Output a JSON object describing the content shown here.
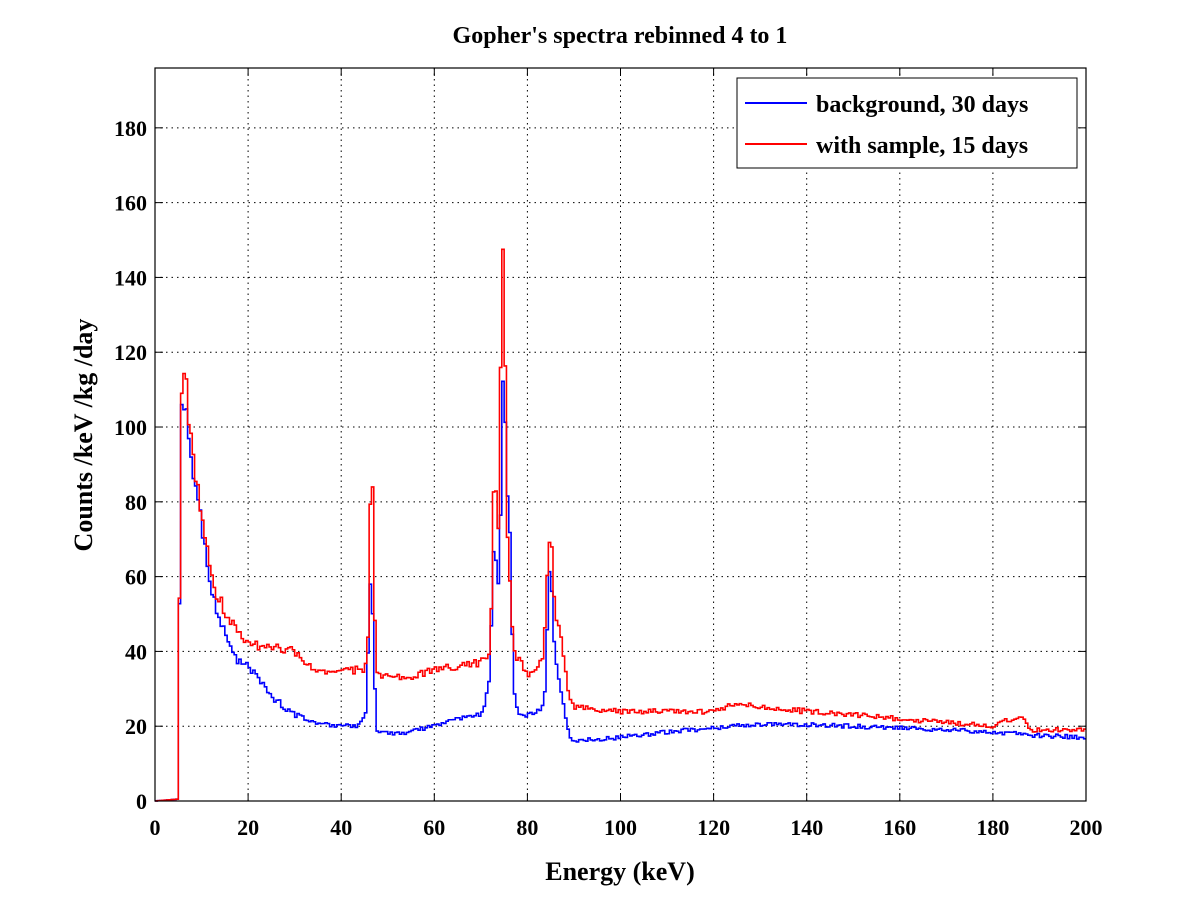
{
  "chart_data": {
    "type": "line",
    "title": "Gopher's spectra rebinned 4 to 1",
    "xlabel": "Energy (keV)",
    "ylabel": "Counts /keV /kg /day",
    "xlim": [
      0,
      200
    ],
    "ylim": [
      0,
      196
    ],
    "xticks": [
      0,
      20,
      40,
      60,
      80,
      100,
      120,
      140,
      160,
      180,
      200
    ],
    "yticks": [
      0,
      20,
      40,
      60,
      80,
      100,
      120,
      140,
      160,
      180
    ],
    "grid": true,
    "legend_position": "top-right",
    "series": [
      {
        "name": "background, 30 days",
        "color": "#0000ff",
        "x": [
          0,
          5,
          5.5,
          6,
          7,
          8,
          9,
          10,
          11,
          12,
          13,
          14,
          15,
          16,
          17,
          18,
          20,
          22,
          25,
          28,
          30,
          35,
          40,
          44,
          45.5,
          46,
          46.5,
          47,
          47.5,
          48,
          50,
          55,
          60,
          65,
          70,
          71,
          72,
          72.5,
          73,
          73.5,
          74,
          74.5,
          75,
          75.5,
          76,
          77,
          78,
          80,
          82,
          83.5,
          84,
          84.5,
          85,
          85.5,
          86,
          87,
          88,
          89,
          90,
          100,
          110,
          120,
          130,
          140,
          150,
          160,
          170,
          180,
          190,
          200
        ],
        "y": [
          0,
          0.5,
          105,
          107,
          102,
          90,
          82,
          75,
          65,
          57,
          52,
          48,
          45,
          42,
          40,
          37,
          36,
          33,
          28,
          25,
          23,
          21,
          20,
          20,
          24,
          54,
          60,
          40,
          19,
          19,
          18,
          18.5,
          20,
          22,
          23,
          26,
          35,
          57,
          75,
          55,
          60,
          95,
          125,
          80,
          86,
          30,
          24,
          23,
          24,
          25,
          34,
          60,
          64,
          45,
          38,
          30,
          24,
          18,
          16,
          17,
          18.5,
          19.5,
          20.5,
          20.5,
          20,
          19.5,
          19,
          18.5,
          17.5,
          17
        ]
      },
      {
        "name": "with sample, 15 days",
        "color": "#ff0000",
        "x": [
          0,
          5,
          5.5,
          6,
          6.5,
          7,
          8,
          9,
          10,
          11,
          12,
          13,
          14,
          15,
          16,
          18,
          20,
          25,
          30,
          35,
          40,
          44,
          45.5,
          46,
          46.5,
          47,
          47.5,
          48,
          50,
          55,
          60,
          65,
          70,
          71,
          72,
          72.5,
          73,
          73.5,
          74,
          74.5,
          75,
          75.5,
          76,
          77,
          78,
          80,
          82,
          83.5,
          84,
          84.5,
          85,
          85.5,
          86,
          87,
          88,
          89,
          90,
          100,
          110,
          120,
          125,
          130,
          140,
          150,
          160,
          170,
          180,
          186,
          188,
          190,
          200
        ],
        "y": [
          0,
          0.5,
          108,
          110,
          116,
          105,
          95,
          85,
          75,
          70,
          60,
          55,
          54,
          50,
          48,
          45,
          42,
          41,
          40,
          34,
          35,
          35,
          36,
          50,
          105,
          60,
          35,
          34,
          33,
          33,
          35,
          36,
          37,
          39,
          38,
          68,
          98,
          70,
          80,
          150,
          151,
          80,
          65,
          41,
          38,
          34,
          35,
          40,
          55,
          68,
          72,
          60,
          50,
          45,
          38,
          27,
          25,
          24,
          24,
          24,
          26,
          25,
          24,
          23,
          22,
          21,
          20,
          23,
          19,
          19,
          19
        ]
      }
    ]
  }
}
